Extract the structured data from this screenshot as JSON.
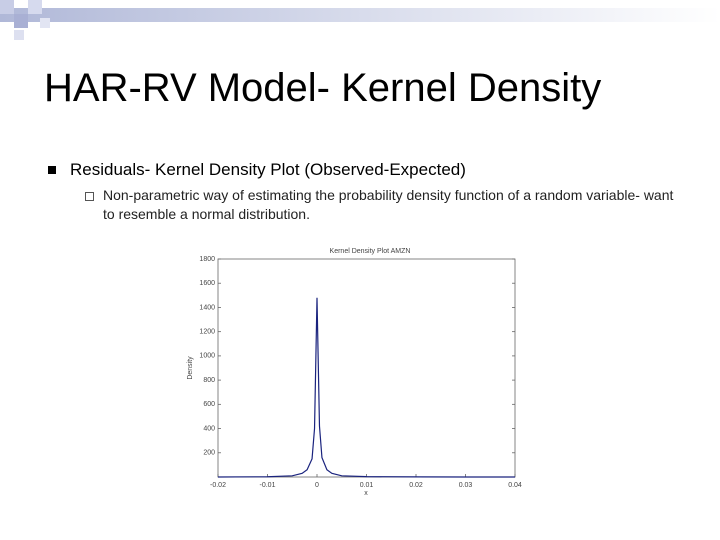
{
  "slide": {
    "title": "HAR-RV Model- Kernel Density",
    "bullets": [
      {
        "text": "Residuals- Kernel Density Plot (Observed-Expected)",
        "sub": [
          "Non-parametric way of estimating the probability density function of a random variable- want to resemble a normal distribution."
        ]
      }
    ]
  },
  "chart_data": {
    "type": "line",
    "title": "Kernel Density Plot AMZN",
    "x_label": "x",
    "y_label": "Density",
    "x": [
      -0.02,
      -0.01,
      -0.005,
      -0.003,
      -0.002,
      -0.001,
      -0.0005,
      0,
      0.0005,
      0.001,
      0.002,
      0.003,
      0.005,
      0.01,
      0.02,
      0.03,
      0.04
    ],
    "series": [
      {
        "name": "Density",
        "color": "#1a237e",
        "values": [
          0,
          2,
          10,
          30,
          60,
          150,
          400,
          1480,
          420,
          160,
          60,
          30,
          10,
          3,
          1,
          0,
          0
        ]
      }
    ],
    "xlim": [
      -0.02,
      0.04
    ],
    "xticks": [
      -0.02,
      -0.01,
      0,
      0.01,
      0.02,
      0.03,
      0.04
    ],
    "ylim": [
      0,
      1800
    ],
    "yticks": [
      200,
      400,
      600,
      800,
      1000,
      1200,
      1400,
      1600,
      1800
    ]
  }
}
